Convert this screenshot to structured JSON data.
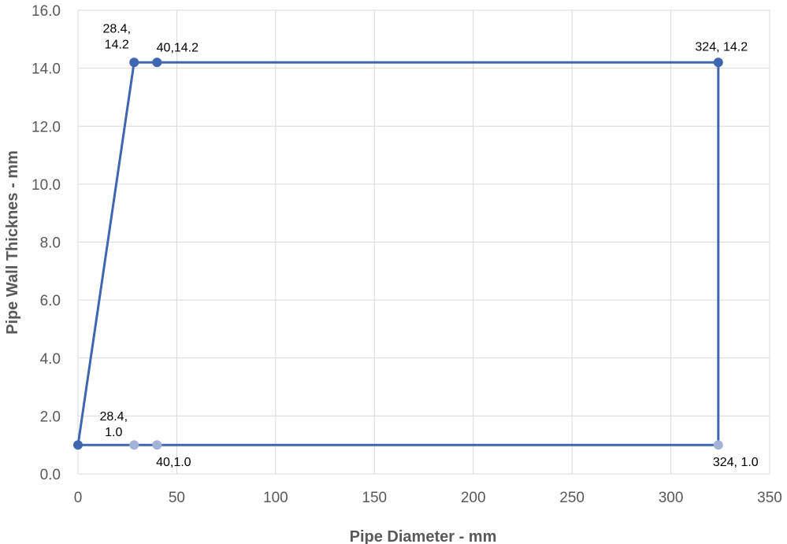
{
  "chart_data": {
    "type": "scatter",
    "title": "",
    "xlabel": "Pipe Diameter - mm",
    "ylabel": "Pipe Wall Thicknes - mm",
    "xlim": [
      0,
      350
    ],
    "ylim": [
      0,
      16
    ],
    "x_ticks": [
      "0",
      "50",
      "100",
      "150",
      "200",
      "250",
      "300",
      "350"
    ],
    "y_ticks": [
      "0.0",
      "2.0",
      "4.0",
      "6.0",
      "8.0",
      "10.0",
      "12.0",
      "14.0",
      "16.0"
    ],
    "grid": true,
    "legend": "none",
    "line_color": "#4066b2",
    "faded_marker_color": "#a3b2d6",
    "series": [
      {
        "name": "",
        "points": [
          {
            "x": 0,
            "y": 1.0,
            "label": ""
          },
          {
            "x": 28.4,
            "y": 14.2,
            "label": "28.4,\n14.2"
          },
          {
            "x": 40,
            "y": 14.2,
            "label": "40,14.2"
          },
          {
            "x": 324,
            "y": 14.2,
            "label": "324, 14.2"
          },
          {
            "x": 324,
            "y": 1.0,
            "label": "324, 1.0"
          },
          {
            "x": 40,
            "y": 1.0,
            "label": "40,1.0"
          },
          {
            "x": 28.4,
            "y": 1.0,
            "label": "28.4,\n1.0"
          },
          {
            "x": 0,
            "y": 1.0,
            "label": ""
          }
        ]
      }
    ]
  }
}
